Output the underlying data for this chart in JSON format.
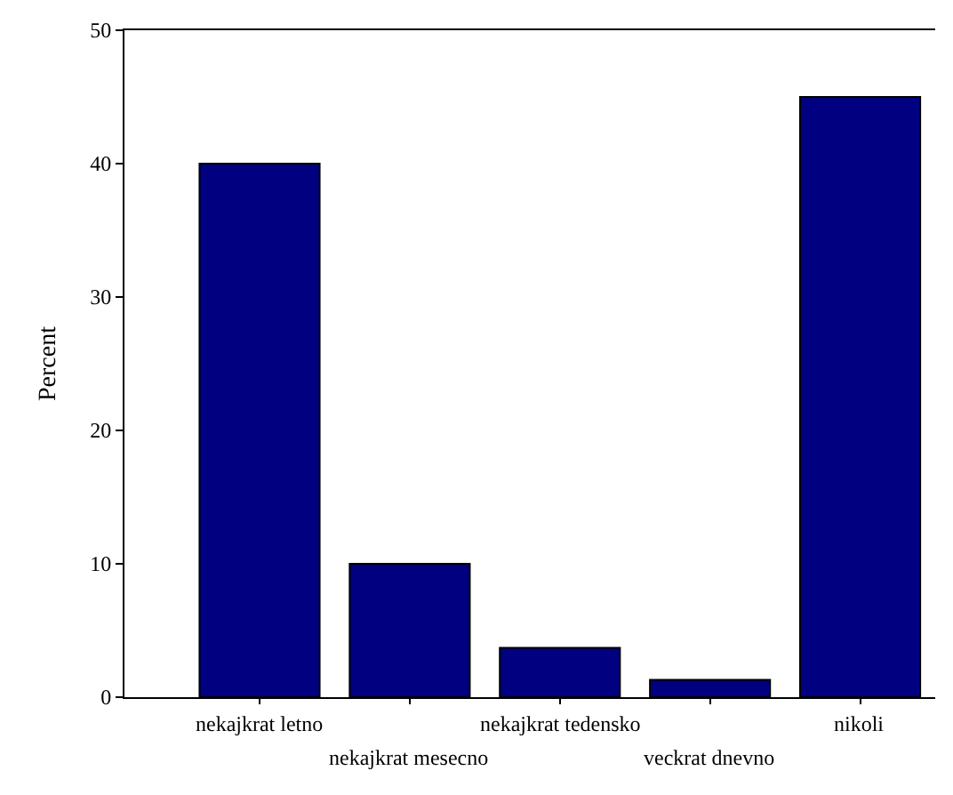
{
  "chart_data": {
    "type": "bar",
    "ylabel": "Percent",
    "categories": [
      "nekajkrat letno",
      "nekajkrat mesecno",
      "nekajkrat tedensko",
      "veckrat dnevno",
      "nikoli"
    ],
    "values": [
      40,
      10,
      3.7,
      1.3,
      45
    ],
    "color": "#000080",
    "ylim": [
      0,
      50
    ],
    "yticks": [
      0,
      10,
      20,
      30,
      40,
      50
    ]
  }
}
